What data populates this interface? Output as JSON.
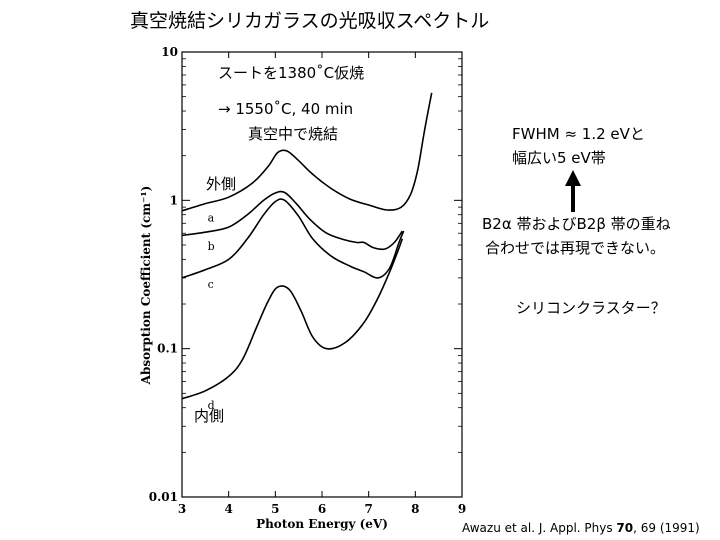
{
  "slide": {
    "title": "真空焼結シリカガラスの光吸収スペクトル",
    "notes": {
      "soot": "スートを1380˚C仮焼",
      "arrow_cond": "→ 1550˚C, 40 min",
      "vacuum": "真空中で焼結",
      "outer": "外側",
      "inner": "内側",
      "fwhm_line1": "FWHM ≈ 1.2 eVと",
      "fwhm_line2": "幅広い5 eV帯",
      "b2_line1": "B2α 帯およびB2β 帯の重ね",
      "b2_line2": "合わせでは再現できない。",
      "cluster": "シリコンクラスター？"
    },
    "citation": {
      "prefix": "Awazu et al. J. Appl. Phys ",
      "volume": "70",
      "suffix": ", 69 (1991)"
    }
  },
  "chart_data": {
    "type": "line",
    "xlabel": "Photon Energy (eV)",
    "ylabel": "Absorption Coefficient (cm⁻¹)",
    "x_ticks": [
      3,
      4,
      5,
      6,
      7,
      8,
      9
    ],
    "y_ticks": [
      {
        "value": 0.01,
        "label": "0.01"
      },
      {
        "value": 0.1,
        "label": "0.1"
      },
      {
        "value": 1,
        "label": "1"
      },
      {
        "value": 10,
        "label": "10"
      }
    ],
    "xlim": [
      3,
      9
    ],
    "ylim": [
      0.01,
      10
    ],
    "y_scale": "log",
    "grid": false,
    "series": [
      {
        "name": "a",
        "points": [
          [
            3.0,
            0.85
          ],
          [
            3.5,
            0.95
          ],
          [
            4.0,
            1.05
          ],
          [
            4.5,
            1.3
          ],
          [
            4.85,
            1.7
          ],
          [
            5.05,
            2.1
          ],
          [
            5.25,
            2.15
          ],
          [
            5.5,
            1.85
          ],
          [
            5.8,
            1.5
          ],
          [
            6.2,
            1.2
          ],
          [
            6.6,
            1.02
          ],
          [
            7.0,
            0.93
          ],
          [
            7.4,
            0.86
          ],
          [
            7.7,
            0.9
          ],
          [
            7.9,
            1.1
          ],
          [
            8.05,
            1.6
          ],
          [
            8.2,
            3.0
          ],
          [
            8.35,
            5.3
          ]
        ]
      },
      {
        "name": "b",
        "points": [
          [
            3.0,
            0.58
          ],
          [
            3.5,
            0.61
          ],
          [
            4.0,
            0.66
          ],
          [
            4.4,
            0.8
          ],
          [
            4.75,
            1.0
          ],
          [
            5.0,
            1.12
          ],
          [
            5.2,
            1.13
          ],
          [
            5.45,
            0.95
          ],
          [
            5.75,
            0.74
          ],
          [
            6.1,
            0.6
          ],
          [
            6.5,
            0.54
          ],
          [
            6.75,
            0.52
          ],
          [
            6.9,
            0.52
          ],
          [
            7.1,
            0.48
          ],
          [
            7.35,
            0.47
          ],
          [
            7.55,
            0.52
          ],
          [
            7.72,
            0.62
          ]
        ]
      },
      {
        "name": "c",
        "points": [
          [
            3.0,
            0.3
          ],
          [
            3.5,
            0.34
          ],
          [
            4.0,
            0.4
          ],
          [
            4.4,
            0.55
          ],
          [
            4.75,
            0.8
          ],
          [
            5.0,
            0.98
          ],
          [
            5.2,
            1.0
          ],
          [
            5.5,
            0.78
          ],
          [
            5.8,
            0.55
          ],
          [
            6.2,
            0.42
          ],
          [
            6.6,
            0.36
          ],
          [
            6.9,
            0.33
          ],
          [
            7.2,
            0.3
          ],
          [
            7.45,
            0.35
          ],
          [
            7.65,
            0.52
          ],
          [
            7.75,
            0.62
          ]
        ]
      },
      {
        "name": "d",
        "points": [
          [
            3.0,
            0.046
          ],
          [
            3.5,
            0.052
          ],
          [
            4.0,
            0.065
          ],
          [
            4.3,
            0.085
          ],
          [
            4.6,
            0.14
          ],
          [
            4.85,
            0.21
          ],
          [
            5.05,
            0.26
          ],
          [
            5.3,
            0.25
          ],
          [
            5.55,
            0.18
          ],
          [
            5.8,
            0.12
          ],
          [
            6.1,
            0.1
          ],
          [
            6.5,
            0.11
          ],
          [
            6.9,
            0.15
          ],
          [
            7.2,
            0.22
          ],
          [
            7.45,
            0.33
          ],
          [
            7.62,
            0.45
          ],
          [
            7.72,
            0.55
          ]
        ]
      }
    ]
  }
}
